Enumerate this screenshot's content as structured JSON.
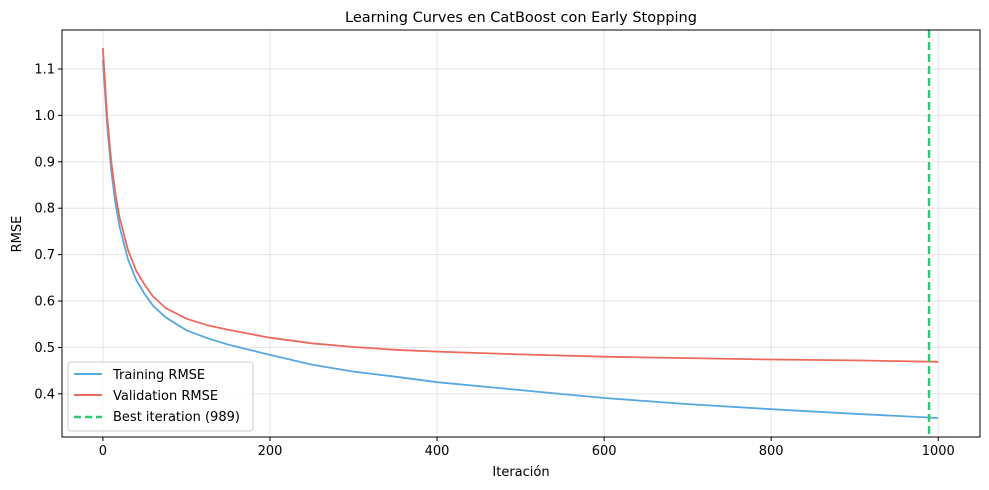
{
  "chart_data": {
    "type": "line",
    "title": "Learning Curves en CatBoost con Early Stopping",
    "xlabel": "Iteración",
    "ylabel": "RMSE",
    "xlim": [
      -49,
      1050
    ],
    "ylim": [
      0.307,
      1.184
    ],
    "xticks": [
      0,
      200,
      400,
      600,
      800,
      1000
    ],
    "yticks": [
      0.4,
      0.5,
      0.6,
      0.7,
      0.8,
      0.9,
      1.0,
      1.1
    ],
    "ytick_labels": [
      "0.4",
      "0.5",
      "0.6",
      "0.7",
      "0.8",
      "0.9",
      "1.0",
      "1.1"
    ],
    "grid": true,
    "legend_position": "lower-left",
    "x": [
      0,
      5,
      10,
      15,
      20,
      30,
      40,
      50,
      60,
      75,
      100,
      125,
      150,
      200,
      250,
      300,
      350,
      400,
      500,
      600,
      700,
      800,
      900,
      1000
    ],
    "series": [
      {
        "name": "Training RMSE",
        "color": "#56a8e0",
        "values": [
          1.12,
          0.98,
          0.88,
          0.81,
          0.76,
          0.69,
          0.645,
          0.615,
          0.59,
          0.565,
          0.537,
          0.52,
          0.506,
          0.484,
          0.463,
          0.448,
          0.437,
          0.425,
          0.408,
          0.391,
          0.378,
          0.367,
          0.357,
          0.348
        ]
      },
      {
        "name": "Validation RMSE",
        "color": "#ec6a5c",
        "values": [
          1.145,
          1.0,
          0.9,
          0.83,
          0.78,
          0.71,
          0.665,
          0.635,
          0.61,
          0.585,
          0.562,
          0.548,
          0.538,
          0.521,
          0.509,
          0.501,
          0.495,
          0.491,
          0.485,
          0.48,
          0.477,
          0.474,
          0.472,
          0.469
        ]
      }
    ],
    "vline": {
      "name": "Best iteration (989)",
      "x": 989,
      "color": "#2ecc71"
    }
  }
}
